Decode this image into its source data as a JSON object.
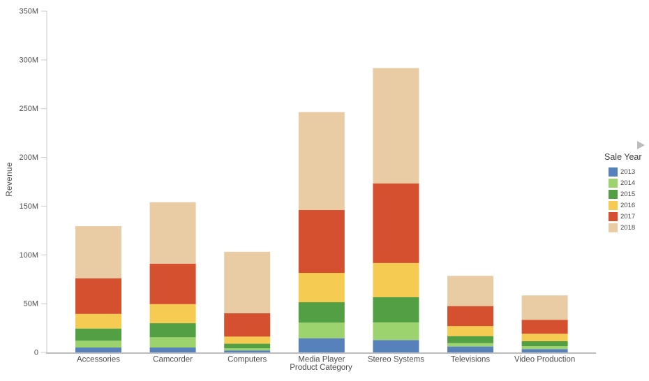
{
  "chart_data": {
    "type": "bar",
    "stacked": true,
    "title": "",
    "xlabel": "Product Category",
    "ylabel": "Revenue",
    "legend_title": "Sale Year",
    "legend_position": "right",
    "grid": false,
    "ylim": [
      0,
      350
    ],
    "y_unit": "M",
    "y_ticks": [
      {
        "value": 0,
        "label": "0"
      },
      {
        "value": 50,
        "label": "50M"
      },
      {
        "value": 100,
        "label": "100M"
      },
      {
        "value": 150,
        "label": "150M"
      },
      {
        "value": 200,
        "label": "200M"
      },
      {
        "value": 250,
        "label": "250M"
      },
      {
        "value": 300,
        "label": "300M"
      },
      {
        "value": 350,
        "label": "350M"
      }
    ],
    "categories": [
      "Accessories",
      "Camcorder",
      "Computers",
      "Media Player",
      "Stereo Systems",
      "Televisions",
      "Video Production"
    ],
    "series": [
      {
        "name": "2013",
        "color": "#5781BA",
        "values": [
          5.0,
          5.0,
          2.0,
          14.5,
          12.7,
          6.0,
          3.4
        ]
      },
      {
        "name": "2014",
        "color": "#9CD36E",
        "values": [
          7.0,
          10.5,
          2.2,
          16.0,
          18.0,
          3.5,
          3.0
        ]
      },
      {
        "name": "2015",
        "color": "#52A043",
        "values": [
          12.5,
          14.5,
          4.7,
          21.0,
          26.0,
          7.2,
          5.1
        ]
      },
      {
        "name": "2016",
        "color": "#F5CC51",
        "values": [
          15.0,
          19.5,
          7.3,
          30.0,
          35.0,
          10.3,
          7.6
        ]
      },
      {
        "name": "2017",
        "color": "#D5502F",
        "values": [
          36.5,
          41.5,
          24.0,
          64.5,
          81.5,
          20.5,
          14.3
        ]
      },
      {
        "name": "2018",
        "color": "#EACCA4",
        "values": [
          53.5,
          63.0,
          63.0,
          100.5,
          118.5,
          31.0,
          25.1
        ]
      }
    ],
    "category_totals": [
      129.5,
      154.0,
      103.2,
      246.5,
      291.7,
      78.5,
      58.5
    ],
    "axis_color": "#cccccc",
    "baseline_color": "#bdbdbd",
    "label_color": "#4e4e4e"
  }
}
